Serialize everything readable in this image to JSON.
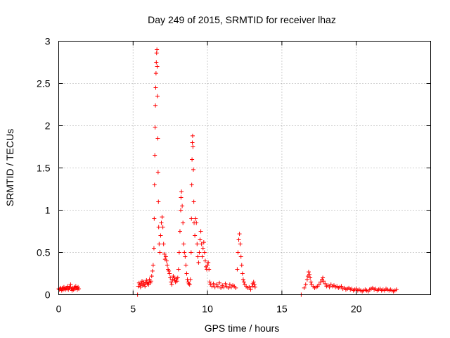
{
  "chart_data": {
    "type": "scatter",
    "title": "Day 249 of 2015, SRMTID for receiver lhaz",
    "xlabel": "GPS time / hours",
    "ylabel": "SRMTID / TECUs",
    "xlim": [
      0,
      25
    ],
    "ylim": [
      0,
      3
    ],
    "xticks": [
      0,
      5,
      10,
      15,
      20
    ],
    "xtick_labels": [
      "0",
      "5",
      "10",
      "15",
      "20"
    ],
    "yticks": [
      0,
      0.5,
      1,
      1.5,
      2,
      2.5,
      3
    ],
    "ytick_labels": [
      "0",
      "0.5",
      "1",
      "1.5",
      "2",
      "2.5",
      "3"
    ],
    "grid": true,
    "marker": "+",
    "series": [
      {
        "name": "SRMTID",
        "color": "#ff0000",
        "points": [
          [
            0.0,
            0.07
          ],
          [
            0.05,
            0.06
          ],
          [
            0.1,
            0.08
          ],
          [
            0.15,
            0.07
          ],
          [
            0.2,
            0.05
          ],
          [
            0.25,
            0.08
          ],
          [
            0.3,
            0.06
          ],
          [
            0.35,
            0.09
          ],
          [
            0.4,
            0.07
          ],
          [
            0.45,
            0.06
          ],
          [
            0.5,
            0.08
          ],
          [
            0.55,
            0.07
          ],
          [
            0.6,
            0.1
          ],
          [
            0.65,
            0.06
          ],
          [
            0.7,
            0.08
          ],
          [
            0.75,
            0.09
          ],
          [
            0.8,
            0.12
          ],
          [
            0.85,
            0.07
          ],
          [
            0.9,
            0.05
          ],
          [
            0.95,
            0.08
          ],
          [
            1.0,
            0.06
          ],
          [
            1.05,
            0.09
          ],
          [
            1.1,
            0.07
          ],
          [
            1.15,
            0.1
          ],
          [
            1.2,
            0.08
          ],
          [
            1.25,
            0.06
          ],
          [
            1.3,
            0.09
          ],
          [
            1.35,
            0.07
          ],
          [
            5.3,
            0.0
          ],
          [
            5.35,
            0.1
          ],
          [
            5.4,
            0.14
          ],
          [
            5.45,
            0.12
          ],
          [
            5.5,
            0.09
          ],
          [
            5.55,
            0.13
          ],
          [
            5.6,
            0.16
          ],
          [
            5.65,
            0.11
          ],
          [
            5.7,
            0.15
          ],
          [
            5.75,
            0.12
          ],
          [
            5.8,
            0.1
          ],
          [
            5.85,
            0.14
          ],
          [
            5.9,
            0.17
          ],
          [
            5.95,
            0.13
          ],
          [
            6.0,
            0.15
          ],
          [
            6.05,
            0.12
          ],
          [
            6.1,
            0.18
          ],
          [
            6.15,
            0.14
          ],
          [
            6.2,
            0.16
          ],
          [
            6.25,
            0.22
          ],
          [
            6.3,
            0.28
          ],
          [
            6.35,
            0.35
          ],
          [
            6.4,
            0.55
          ],
          [
            6.42,
            0.9
          ],
          [
            6.44,
            1.3
          ],
          [
            6.46,
            1.65
          ],
          [
            6.48,
            1.98
          ],
          [
            6.5,
            2.24
          ],
          [
            6.52,
            2.45
          ],
          [
            6.54,
            2.62
          ],
          [
            6.56,
            2.75
          ],
          [
            6.58,
            2.86
          ],
          [
            6.6,
            2.9
          ],
          [
            6.62,
            2.7
          ],
          [
            6.64,
            2.35
          ],
          [
            6.66,
            1.85
          ],
          [
            6.68,
            1.45
          ],
          [
            6.7,
            1.1
          ],
          [
            6.72,
            0.8
          ],
          [
            6.75,
            0.6
          ],
          [
            6.8,
            0.5
          ],
          [
            6.85,
            0.7
          ],
          [
            6.9,
            0.85
          ],
          [
            6.95,
            0.92
          ],
          [
            7.0,
            0.8
          ],
          [
            7.05,
            0.6
          ],
          [
            7.1,
            0.48
          ],
          [
            7.15,
            0.42
          ],
          [
            7.2,
            0.45
          ],
          [
            7.25,
            0.4
          ],
          [
            7.3,
            0.35
          ],
          [
            7.35,
            0.3
          ],
          [
            7.4,
            0.28
          ],
          [
            7.45,
            0.25
          ],
          [
            7.5,
            0.2
          ],
          [
            7.55,
            0.15
          ],
          [
            7.6,
            0.12
          ],
          [
            7.65,
            0.18
          ],
          [
            7.7,
            0.22
          ],
          [
            7.75,
            0.2
          ],
          [
            7.8,
            0.17
          ],
          [
            7.85,
            0.15
          ],
          [
            7.9,
            0.19
          ],
          [
            7.95,
            0.16
          ],
          [
            8.0,
            0.2
          ],
          [
            8.05,
            0.3
          ],
          [
            8.1,
            0.5
          ],
          [
            8.15,
            0.75
          ],
          [
            8.2,
            1.0
          ],
          [
            8.22,
            1.15
          ],
          [
            8.25,
            1.22
          ],
          [
            8.3,
            1.05
          ],
          [
            8.35,
            0.85
          ],
          [
            8.4,
            0.6
          ],
          [
            8.45,
            0.5
          ],
          [
            8.5,
            0.45
          ],
          [
            8.55,
            0.35
          ],
          [
            8.6,
            0.25
          ],
          [
            8.65,
            0.18
          ],
          [
            8.7,
            0.15
          ],
          [
            8.75,
            0.13
          ],
          [
            8.8,
            0.12
          ],
          [
            8.85,
            0.18
          ],
          [
            8.9,
            0.5
          ],
          [
            8.92,
            0.9
          ],
          [
            8.94,
            1.3
          ],
          [
            8.96,
            1.6
          ],
          [
            8.98,
            1.8
          ],
          [
            9.0,
            1.88
          ],
          [
            9.02,
            1.75
          ],
          [
            9.05,
            1.48
          ],
          [
            9.08,
            1.1
          ],
          [
            9.1,
            0.85
          ],
          [
            9.15,
            0.7
          ],
          [
            9.2,
            0.9
          ],
          [
            9.25,
            0.85
          ],
          [
            9.3,
            0.6
          ],
          [
            9.35,
            0.45
          ],
          [
            9.4,
            0.38
          ],
          [
            9.45,
            0.5
          ],
          [
            9.5,
            0.65
          ],
          [
            9.55,
            0.75
          ],
          [
            9.6,
            0.6
          ],
          [
            9.65,
            0.45
          ],
          [
            9.7,
            0.55
          ],
          [
            9.75,
            0.62
          ],
          [
            9.8,
            0.5
          ],
          [
            9.85,
            0.4
          ],
          [
            9.9,
            0.33
          ],
          [
            9.95,
            0.3
          ],
          [
            10.0,
            0.35
          ],
          [
            10.05,
            0.38
          ],
          [
            10.1,
            0.3
          ],
          [
            10.15,
            0.15
          ],
          [
            10.2,
            0.12
          ],
          [
            10.3,
            0.1
          ],
          [
            10.4,
            0.13
          ],
          [
            10.5,
            0.09
          ],
          [
            10.6,
            0.12
          ],
          [
            10.7,
            0.1
          ],
          [
            10.8,
            0.14
          ],
          [
            10.9,
            0.08
          ],
          [
            11.0,
            0.11
          ],
          [
            11.1,
            0.09
          ],
          [
            11.2,
            0.13
          ],
          [
            11.3,
            0.1
          ],
          [
            11.4,
            0.08
          ],
          [
            11.5,
            0.12
          ],
          [
            11.6,
            0.09
          ],
          [
            11.7,
            0.11
          ],
          [
            11.8,
            0.1
          ],
          [
            11.9,
            0.08
          ],
          [
            12.0,
            0.3
          ],
          [
            12.05,
            0.5
          ],
          [
            12.1,
            0.65
          ],
          [
            12.15,
            0.72
          ],
          [
            12.2,
            0.6
          ],
          [
            12.25,
            0.45
          ],
          [
            12.3,
            0.35
          ],
          [
            12.35,
            0.25
          ],
          [
            12.4,
            0.18
          ],
          [
            12.45,
            0.15
          ],
          [
            12.5,
            0.12
          ],
          [
            12.6,
            0.1
          ],
          [
            12.7,
            0.08
          ],
          [
            12.8,
            0.09
          ],
          [
            12.9,
            0.06
          ],
          [
            13.0,
            0.1
          ],
          [
            13.05,
            0.13
          ],
          [
            13.1,
            0.15
          ],
          [
            13.15,
            0.12
          ],
          [
            13.2,
            0.09
          ],
          [
            16.3,
            0.0
          ],
          [
            16.5,
            0.08
          ],
          [
            16.6,
            0.12
          ],
          [
            16.7,
            0.18
          ],
          [
            16.75,
            0.22
          ],
          [
            16.8,
            0.27
          ],
          [
            16.85,
            0.24
          ],
          [
            16.9,
            0.2
          ],
          [
            16.95,
            0.15
          ],
          [
            17.0,
            0.12
          ],
          [
            17.1,
            0.1
          ],
          [
            17.2,
            0.08
          ],
          [
            17.3,
            0.09
          ],
          [
            17.4,
            0.1
          ],
          [
            17.5,
            0.12
          ],
          [
            17.6,
            0.15
          ],
          [
            17.7,
            0.18
          ],
          [
            17.75,
            0.2
          ],
          [
            17.8,
            0.16
          ],
          [
            17.9,
            0.13
          ],
          [
            18.0,
            0.1
          ],
          [
            18.1,
            0.11
          ],
          [
            18.2,
            0.09
          ],
          [
            18.3,
            0.12
          ],
          [
            18.4,
            0.1
          ],
          [
            18.5,
            0.11
          ],
          [
            18.6,
            0.09
          ],
          [
            18.7,
            0.1
          ],
          [
            18.8,
            0.08
          ],
          [
            18.9,
            0.09
          ],
          [
            19.0,
            0.1
          ],
          [
            19.1,
            0.07
          ],
          [
            19.2,
            0.08
          ],
          [
            19.3,
            0.06
          ],
          [
            19.4,
            0.07
          ],
          [
            19.5,
            0.08
          ],
          [
            19.6,
            0.06
          ],
          [
            19.7,
            0.07
          ],
          [
            19.8,
            0.05
          ],
          [
            19.9,
            0.06
          ],
          [
            20.0,
            0.07
          ],
          [
            20.1,
            0.05
          ],
          [
            20.2,
            0.06
          ],
          [
            20.3,
            0.05
          ],
          [
            20.4,
            0.04
          ],
          [
            20.5,
            0.05
          ],
          [
            20.6,
            0.06
          ],
          [
            20.7,
            0.05
          ],
          [
            20.8,
            0.04
          ],
          [
            20.9,
            0.06
          ],
          [
            21.0,
            0.07
          ],
          [
            21.1,
            0.08
          ],
          [
            21.2,
            0.06
          ],
          [
            21.3,
            0.07
          ],
          [
            21.4,
            0.05
          ],
          [
            21.5,
            0.06
          ],
          [
            21.6,
            0.07
          ],
          [
            21.7,
            0.05
          ],
          [
            21.8,
            0.06
          ],
          [
            21.9,
            0.05
          ],
          [
            22.0,
            0.07
          ],
          [
            22.1,
            0.06
          ],
          [
            22.2,
            0.05
          ],
          [
            22.3,
            0.06
          ],
          [
            22.4,
            0.05
          ],
          [
            22.5,
            0.04
          ],
          [
            22.6,
            0.05
          ],
          [
            22.7,
            0.06
          ]
        ]
      }
    ]
  }
}
